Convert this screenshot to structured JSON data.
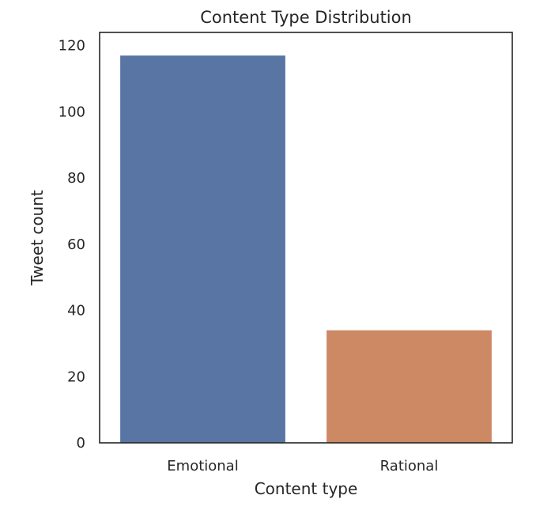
{
  "chart_data": {
    "type": "bar",
    "title": "Content Type Distribution",
    "xlabel": "Content type",
    "ylabel": "Tweet count",
    "categories": [
      "Emotional",
      "Rational"
    ],
    "values": [
      117,
      34
    ],
    "colors": [
      "#5975a4",
      "#cc8963"
    ],
    "ylim": [
      0,
      124
    ],
    "yticks": [
      0,
      20,
      40,
      60,
      80,
      100,
      120
    ],
    "grid": false
  }
}
